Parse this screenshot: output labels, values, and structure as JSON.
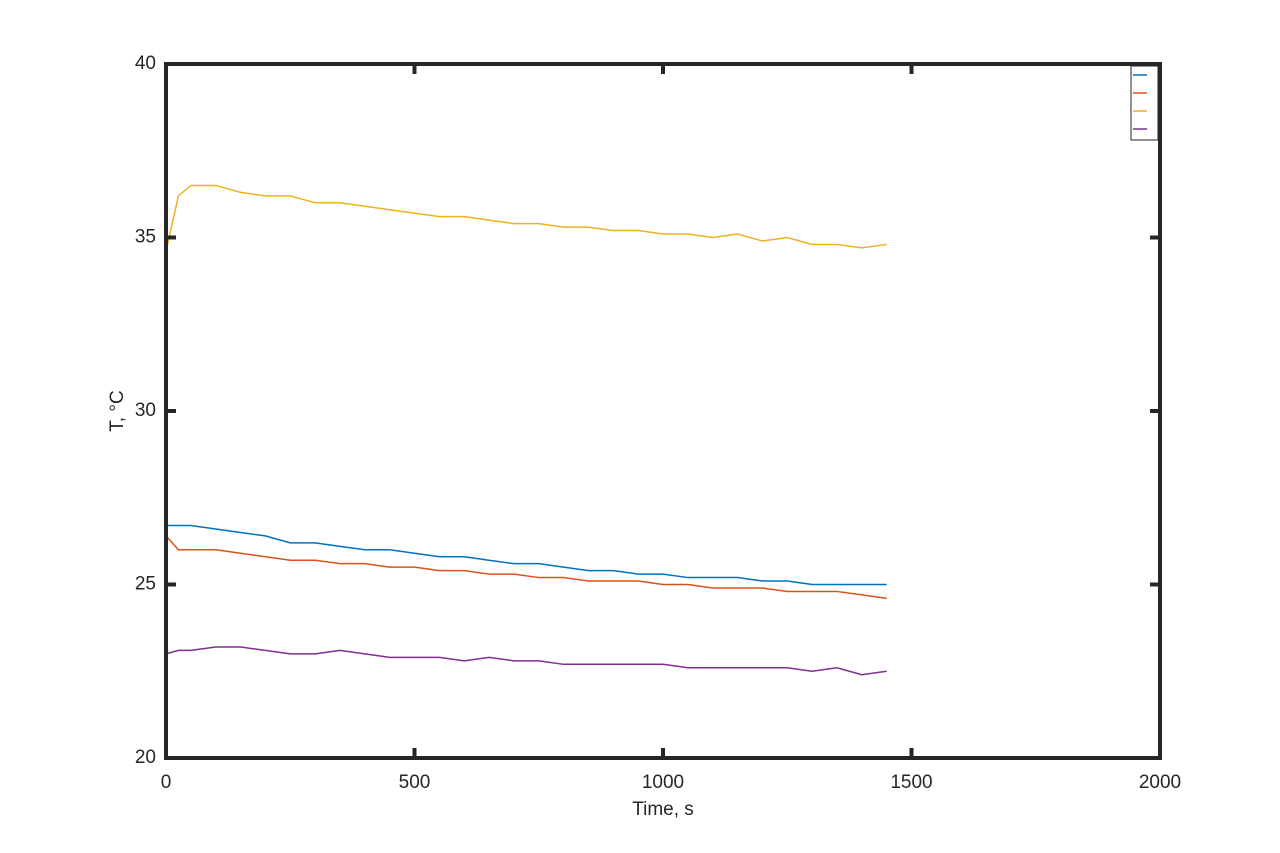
{
  "chart_data": {
    "type": "line",
    "xlabel": "Time, s",
    "ylabel": "T, °C",
    "x": [
      0,
      25,
      50,
      100,
      150,
      200,
      250,
      300,
      350,
      400,
      450,
      500,
      550,
      600,
      650,
      700,
      750,
      800,
      850,
      900,
      950,
      1000,
      1050,
      1100,
      1150,
      1200,
      1250,
      1300,
      1350,
      1400,
      1450
    ],
    "series": [
      {
        "color": "#0072bd",
        "values": [
          26.7,
          26.7,
          26.7,
          26.6,
          26.5,
          26.4,
          26.2,
          26.2,
          26.1,
          26.0,
          26.0,
          25.9,
          25.8,
          25.8,
          25.7,
          25.6,
          25.6,
          25.5,
          25.4,
          25.4,
          25.3,
          25.3,
          25.2,
          25.2,
          25.2,
          25.1,
          25.1,
          25.0,
          25.0,
          25.0,
          25.0
        ]
      },
      {
        "color": "#d95319",
        "values": [
          26.4,
          26.0,
          26.0,
          26.0,
          25.9,
          25.8,
          25.7,
          25.7,
          25.6,
          25.6,
          25.5,
          25.5,
          25.4,
          25.4,
          25.3,
          25.3,
          25.2,
          25.2,
          25.1,
          25.1,
          25.1,
          25.0,
          25.0,
          24.9,
          24.9,
          24.9,
          24.8,
          24.8,
          24.8,
          24.7,
          24.6
        ]
      },
      {
        "color": "#edb120",
        "values": [
          34.6,
          36.2,
          36.5,
          36.5,
          36.3,
          36.2,
          36.2,
          36.0,
          36.0,
          35.9,
          35.8,
          35.7,
          35.6,
          35.6,
          35.5,
          35.4,
          35.4,
          35.3,
          35.3,
          35.2,
          35.2,
          35.1,
          35.1,
          35.0,
          35.1,
          34.9,
          35.0,
          34.8,
          34.8,
          34.7,
          34.8
        ]
      },
      {
        "color": "#7e2f8e",
        "values": [
          23.0,
          23.1,
          23.1,
          23.2,
          23.2,
          23.1,
          23.0,
          23.0,
          23.1,
          23.0,
          22.9,
          22.9,
          22.9,
          22.8,
          22.9,
          22.8,
          22.8,
          22.7,
          22.7,
          22.7,
          22.7,
          22.7,
          22.6,
          22.6,
          22.6,
          22.6,
          22.6,
          22.5,
          22.6,
          22.4,
          22.5
        ]
      }
    ],
    "xlim": [
      0,
      2000
    ],
    "xticks": [
      0,
      500,
      1000,
      1500,
      2000
    ],
    "ylim": [
      20,
      40
    ],
    "yticks": [
      20,
      25,
      30,
      35,
      40
    ],
    "legend": "upper right"
  }
}
